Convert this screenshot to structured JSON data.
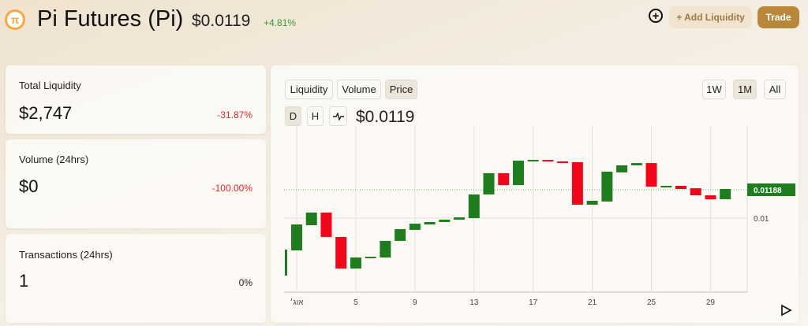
{
  "header": {
    "title": "Pi Futures (Pi)",
    "price": "$0.0119",
    "change": "+4.81%",
    "add_liquidity": "+ Add Liquidity",
    "trade": "Trade"
  },
  "stats": [
    {
      "label": "Total Liquidity",
      "value": "$2,747",
      "change": "-31.87%"
    },
    {
      "label": "Volume (24hrs)",
      "value": "$0",
      "change": "-100.00%"
    },
    {
      "label": "Transactions (24hrs)",
      "value": "1",
      "change": "0%"
    }
  ],
  "chart_panel": {
    "tabs": [
      "Liquidity",
      "Volume",
      "Price"
    ],
    "selected_tab": "Price",
    "ranges": [
      "1W",
      "1M",
      "All"
    ],
    "selected_range": "1M",
    "intervals": [
      "D",
      "H"
    ],
    "current_price": "$0.0119"
  },
  "colors": {
    "up": "#1e7d1e",
    "down": "#f0061a",
    "accent": "#b8873a"
  },
  "chart_data": {
    "type": "candlestick",
    "x_tick_labels": [
      "אוג׳",
      "5",
      "9",
      "13",
      "17",
      "21",
      "25",
      "29"
    ],
    "y_tick_labels": [
      "0.01"
    ],
    "last_price_label": "0.01188",
    "last_price": 0.01188,
    "ylim": [
      0.0052,
      0.0141
    ],
    "candles": [
      {
        "day": 0,
        "open": 0.00619,
        "close": 0.00791
      },
      {
        "day": 1,
        "open": 0.00786,
        "close": 0.00958
      },
      {
        "day": 2,
        "open": 0.00953,
        "close": 0.01037
      },
      {
        "day": 3,
        "open": 0.01037,
        "close": 0.00875
      },
      {
        "day": 4,
        "open": 0.00875,
        "close": 0.00666
      },
      {
        "day": 5,
        "open": 0.00666,
        "close": 0.00739
      },
      {
        "day": 6,
        "open": 0.00734,
        "close": 0.00744
      },
      {
        "day": 7,
        "open": 0.00739,
        "close": 0.00849
      },
      {
        "day": 8,
        "open": 0.00849,
        "close": 0.00927
      },
      {
        "day": 9,
        "open": 0.00922,
        "close": 0.00963
      },
      {
        "day": 10,
        "open": 0.00958,
        "close": 0.00974
      },
      {
        "day": 11,
        "open": 0.00974,
        "close": 0.0099
      },
      {
        "day": 12,
        "open": 0.0099,
        "close": 0.01005
      },
      {
        "day": 13,
        "open": 0.01,
        "close": 0.01157
      },
      {
        "day": 14,
        "open": 0.01157,
        "close": 0.01298
      },
      {
        "day": 15,
        "open": 0.01298,
        "close": 0.01219
      },
      {
        "day": 16,
        "open": 0.01219,
        "close": 0.01381
      },
      {
        "day": 17,
        "open": 0.01381,
        "close": 0.01386
      },
      {
        "day": 18,
        "open": 0.01386,
        "close": 0.01376
      },
      {
        "day": 19,
        "open": 0.01376,
        "close": 0.01371
      },
      {
        "day": 20,
        "open": 0.01371,
        "close": 0.01089
      },
      {
        "day": 21,
        "open": 0.01089,
        "close": 0.01115
      },
      {
        "day": 22,
        "open": 0.0111,
        "close": 0.01308
      },
      {
        "day": 23,
        "open": 0.01303,
        "close": 0.0135
      },
      {
        "day": 24,
        "open": 0.0135,
        "close": 0.01365
      },
      {
        "day": 25,
        "open": 0.01365,
        "close": 0.01209
      },
      {
        "day": 26,
        "open": 0.01209,
        "close": 0.01214
      },
      {
        "day": 27,
        "open": 0.01214,
        "close": 0.01193
      },
      {
        "day": 28,
        "open": 0.01198,
        "close": 0.01151
      },
      {
        "day": 29,
        "open": 0.01151,
        "close": 0.01125
      },
      {
        "day": 30,
        "open": 0.01125,
        "close": 0.01193
      }
    ]
  }
}
